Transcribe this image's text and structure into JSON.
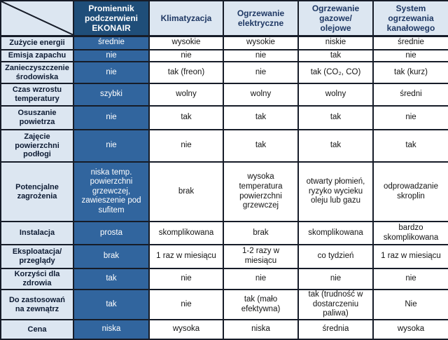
{
  "colors": {
    "dark_blue_header": "#1f4e79",
    "medium_blue_cell": "#31659e",
    "light_blue": "#dce6f1",
    "header_text": "#1f3864",
    "label_text": "#0d1b33",
    "border": "#161c28"
  },
  "table": {
    "corner_label": "",
    "columns": [
      "Promiennik\npodczerwieni\nEKONAIR",
      "Klimatyzacja",
      "Ogrzewanie\nelektryczne",
      "Ogrzewanie\ngazowe/\nolejowe",
      "System\nogrzewania\nkanałowego"
    ],
    "rows": [
      {
        "label": "Zużycie energii",
        "values": [
          "średnie",
          "wysokie",
          "wysokie",
          "niskie",
          "średnie"
        ]
      },
      {
        "label": "Emisja zapachu",
        "values": [
          "nie",
          "nie",
          "nie",
          "tak",
          "nie"
        ]
      },
      {
        "label": "Zanieczyszczenie\nśrodowiska",
        "values": [
          "nie",
          "tak (freon)",
          "nie",
          "tak (CO₂, CO)",
          "tak (kurz)"
        ]
      },
      {
        "label": "Czas wzrostu\ntemperatury",
        "values": [
          "szybki",
          "wolny",
          "wolny",
          "wolny",
          "średni"
        ]
      },
      {
        "label": "Osuszanie\npowietrza",
        "values": [
          "nie",
          "tak",
          "tak",
          "tak",
          "nie"
        ]
      },
      {
        "label": "Zajęcie\npowierzchni\npodłogi",
        "values": [
          "nie",
          "nie",
          "tak",
          "tak",
          "tak"
        ]
      },
      {
        "label": "Potencjalne\nzagrożenia",
        "values": [
          "niska temp.\npowierzchni\ngrzewczej,\nzawieszenie pod\nsufitem",
          "brak",
          "wysoka\ntemperatura\npowierzchni\ngrzewczej",
          "otwarty płomień,\nryzyko wycieku\noleju lub gazu",
          "odprowadzanie\nskroplin"
        ]
      },
      {
        "label": "Instalacja",
        "values": [
          "prosta",
          "skomplikowana",
          "brak",
          "skomplikowana",
          "bardzo\nskomplikowana"
        ]
      },
      {
        "label": "Eksploatacja/\nprzeglądy",
        "values": [
          "brak",
          "1 raz w miesiącu",
          "1-2 razy w\nmiesiącu",
          "co tydzień",
          "1 raz w miesiącu"
        ]
      },
      {
        "label": "Korzyści dla\nzdrowia",
        "values": [
          "tak",
          "nie",
          "nie",
          "nie",
          "nie"
        ]
      },
      {
        "label": "Do zastosowań\nna zewnątrz",
        "values": [
          "tak",
          "nie",
          "tak (mało\nefektywna)",
          "tak (trudność w\ndostarczeniu\npaliwa)",
          "Nie"
        ]
      },
      {
        "label": "Cena",
        "values": [
          "niska",
          "wysoka",
          "niska",
          "średnia",
          "wysoka"
        ]
      }
    ]
  }
}
